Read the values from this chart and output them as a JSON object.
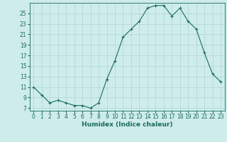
{
  "x": [
    0,
    1,
    2,
    3,
    4,
    5,
    6,
    7,
    8,
    9,
    10,
    11,
    12,
    13,
    14,
    15,
    16,
    17,
    18,
    19,
    20,
    21,
    22,
    23
  ],
  "y": [
    11,
    9.5,
    8,
    8.5,
    8,
    7.5,
    7.5,
    7,
    8,
    12.5,
    16,
    20.5,
    22,
    23.5,
    26,
    26.5,
    26.5,
    24.5,
    26,
    23.5,
    22,
    17.5,
    13.5,
    12
  ],
  "line_color": "#1a6b5a",
  "marker": "+",
  "marker_size": 3,
  "bg_color": "#ceecea",
  "grid_color": "#aed6d3",
  "xlabel": "Humidex (Indice chaleur)",
  "xlim": [
    -0.5,
    23.5
  ],
  "ylim": [
    6.5,
    27
  ],
  "yticks": [
    7,
    9,
    11,
    13,
    15,
    17,
    19,
    21,
    23,
    25
  ],
  "xticks": [
    0,
    1,
    2,
    3,
    4,
    5,
    6,
    7,
    8,
    9,
    10,
    11,
    12,
    13,
    14,
    15,
    16,
    17,
    18,
    19,
    20,
    21,
    22,
    23
  ],
  "label_fontsize": 6.5,
  "tick_fontsize": 5.5
}
